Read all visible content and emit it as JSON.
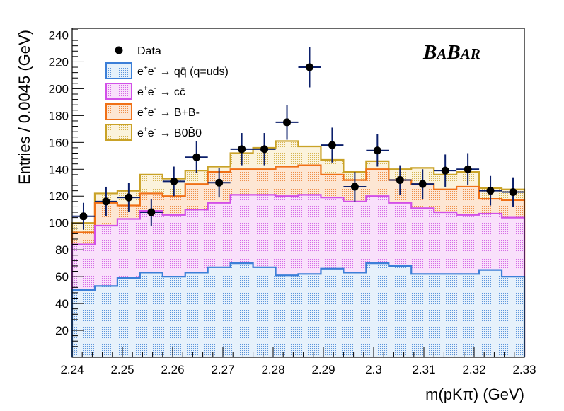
{
  "chart_data": {
    "type": "stacked-histogram",
    "xlabel": "m(pKπ) (GeV)",
    "ylabel": "Entries / 0.0045 (GeV)",
    "xlim": [
      2.24,
      2.33
    ],
    "ylim": [
      0,
      245
    ],
    "bin_width": 0.0045,
    "x_ticks": [
      "2.24",
      "2.25",
      "2.26",
      "2.27",
      "2.28",
      "2.29",
      "2.3",
      "2.31",
      "2.32",
      "2.33"
    ],
    "y_ticks": [
      "20",
      "40",
      "60",
      "80",
      "100",
      "120",
      "140",
      "160",
      "180",
      "200",
      "220",
      "240"
    ],
    "experiment_label": {
      "big1": "B",
      "small1": "A",
      "big2": "B",
      "small2": "AR"
    },
    "stack_totals": [
      {
        "name": "e+e- → qq̄ (q=uds)",
        "color": "#3c7fd8",
        "fill": "#cfe3f7",
        "values": [
          50,
          53,
          59,
          63,
          60,
          63,
          67,
          70,
          67,
          61,
          62,
          66,
          63,
          70,
          68,
          62,
          62,
          62,
          65,
          60
        ]
      },
      {
        "name": "e+e- → cc̄",
        "color": "#d24fe8",
        "fill": "#f3c7f6",
        "values": [
          84,
          98,
          103,
          109,
          106,
          110,
          115,
          121,
          121,
          120,
          121,
          119,
          116,
          120,
          115,
          111,
          108,
          106,
          107,
          104
        ]
      },
      {
        "name": "e+e- → B+B-",
        "color": "#f07016",
        "fill": "#fbd4b5",
        "values": [
          93,
          115,
          113,
          122,
          120,
          129,
          138,
          140,
          140,
          142,
          143,
          136,
          132,
          140,
          132,
          129,
          125,
          127,
          118,
          117
        ]
      },
      {
        "name": "e+e- → B0B̄0",
        "color": "#c9a227",
        "fill": "#f6e8bd",
        "values": [
          100,
          122,
          124,
          136,
          133,
          139,
          142,
          152,
          156,
          161,
          157,
          147,
          138,
          146,
          140,
          141,
          136,
          138,
          126,
          125
        ]
      }
    ],
    "data_points": {
      "name": "Data",
      "x": [
        2.24225,
        2.24675,
        2.25125,
        2.25575,
        2.26025,
        2.26475,
        2.26925,
        2.27375,
        2.27825,
        2.28275,
        2.28725,
        2.29175,
        2.29625,
        2.30075,
        2.30525,
        2.30975,
        2.31425,
        2.31875,
        2.32325,
        2.32775
      ],
      "y": [
        105,
        116,
        119,
        108,
        131,
        149,
        130,
        155,
        155,
        175,
        216,
        158,
        127,
        154,
        132,
        129,
        139,
        140,
        124,
        123
      ],
      "yerr": [
        10,
        11,
        11,
        10,
        11,
        12,
        11,
        12,
        12,
        13,
        15,
        13,
        11,
        12,
        11,
        11,
        12,
        12,
        11,
        11
      ]
    },
    "legend": {
      "position": "top-left",
      "entries": [
        {
          "kind": "marker",
          "main": "Data"
        },
        {
          "kind": "box",
          "series": 0,
          "main": "e",
          "sup1": "+",
          "mid": "e",
          "sup2": "-",
          "rest": " → qq̄ (q=uds)"
        },
        {
          "kind": "box",
          "series": 1,
          "main": "e",
          "sup1": "+",
          "mid": "e",
          "sup2": "-",
          "rest": " → cc̄"
        },
        {
          "kind": "box",
          "series": 2,
          "main": "e",
          "sup1": "+",
          "mid": "e",
          "sup2": "-",
          "rest": " → B+B-"
        },
        {
          "kind": "box",
          "series": 3,
          "main": "e",
          "sup1": "+",
          "mid": "e",
          "sup2": "-",
          "rest": " → B0B̄0"
        }
      ]
    }
  }
}
